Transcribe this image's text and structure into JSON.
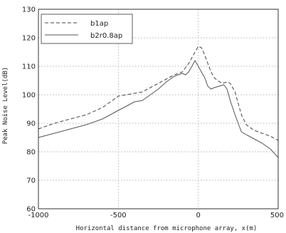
{
  "chart_data": {
    "type": "line",
    "xlabel": "Horizontal distance from microphone array, x(m)",
    "ylabel": "Peak Noise Level(dB)",
    "xlim": [
      -1000,
      500
    ],
    "ylim": [
      60,
      130
    ],
    "xticks": [
      -1000,
      -500,
      0,
      500
    ],
    "yticks": [
      60,
      70,
      80,
      90,
      100,
      110,
      120,
      130
    ],
    "grid": true,
    "legend_position": "top-left",
    "series": [
      {
        "name": "b1ap",
        "style": "dashed",
        "color": "#444444",
        "x": [
          -1000,
          -900,
          -800,
          -700,
          -600,
          -500,
          -450,
          -400,
          -350,
          -300,
          -250,
          -200,
          -150,
          -100,
          -80,
          -60,
          -40,
          -20,
          0,
          20,
          40,
          60,
          80,
          100,
          120,
          150,
          180,
          200,
          230,
          250,
          270,
          300,
          350,
          400,
          450,
          500
        ],
        "y": [
          88,
          90,
          91.5,
          93,
          95.5,
          99.5,
          100,
          100.5,
          101,
          102.5,
          104,
          105.5,
          107,
          108,
          109.5,
          111,
          113,
          115,
          117,
          116.5,
          114,
          111,
          108,
          106,
          105,
          104,
          104.5,
          104,
          101,
          97,
          93,
          89.5,
          87.5,
          86.5,
          85.5,
          84
        ]
      },
      {
        "name": "b2r0.8ap",
        "style": "solid",
        "color": "#555555",
        "x": [
          -1000,
          -900,
          -800,
          -700,
          -600,
          -500,
          -450,
          -400,
          -350,
          -300,
          -250,
          -200,
          -150,
          -100,
          -80,
          -60,
          -40,
          -20,
          0,
          20,
          40,
          60,
          80,
          100,
          130,
          160,
          180,
          200,
          230,
          250,
          270,
          300,
          350,
          400,
          450,
          500
        ],
        "y": [
          85,
          86.5,
          88,
          89.5,
          91.5,
          94.5,
          96,
          97.5,
          98,
          100,
          102,
          104.5,
          106.5,
          107.5,
          107,
          108,
          110,
          112,
          110,
          108,
          106,
          103,
          102,
          102.5,
          103,
          103.5,
          102,
          98,
          93,
          90,
          87,
          86,
          84.5,
          83,
          81,
          78
        ]
      }
    ]
  }
}
